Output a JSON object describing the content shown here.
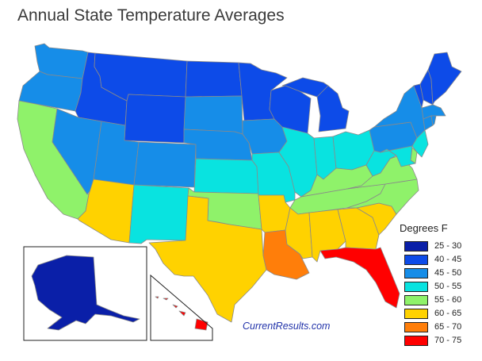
{
  "title": "Annual State Temperature Averages",
  "legend": {
    "title": "Degrees F",
    "items": [
      {
        "label": "25 - 30",
        "color": "#0a1fa8"
      },
      {
        "label": "40 - 45",
        "color": "#0d4be8"
      },
      {
        "label": "45 - 50",
        "color": "#168de8"
      },
      {
        "label": "50 - 55",
        "color": "#09e3e0"
      },
      {
        "label": "55 - 60",
        "color": "#8ff26a"
      },
      {
        "label": "60 - 65",
        "color": "#ffd200"
      },
      {
        "label": "65 - 70",
        "color": "#ff7e0a"
      },
      {
        "label": "70 - 75",
        "color": "#ff0000"
      }
    ]
  },
  "brand": "CurrentResults.com",
  "states": {
    "WA": "45 - 50",
    "OR": "45 - 50",
    "CA": "55 - 60",
    "ID": "40 - 45",
    "NV": "45 - 50",
    "MT": "40 - 45",
    "WY": "40 - 45",
    "UT": "45 - 50",
    "CO": "45 - 50",
    "AZ": "60 - 65",
    "NM": "50 - 55",
    "ND": "40 - 45",
    "SD": "45 - 50",
    "NE": "45 - 50",
    "KS": "50 - 55",
    "OK": "55 - 60",
    "TX": "60 - 65",
    "MN": "40 - 45",
    "IA": "45 - 50",
    "MO": "50 - 55",
    "AR": "60 - 65",
    "LA": "65 - 70",
    "WI": "40 - 45",
    "IL": "50 - 55",
    "MI": "40 - 45",
    "IN": "50 - 55",
    "OH": "50 - 55",
    "KY": "55 - 60",
    "TN": "55 - 60",
    "MS": "60 - 65",
    "AL": "60 - 65",
    "GA": "60 - 65",
    "FL": "70 - 75",
    "SC": "60 - 65",
    "NC": "55 - 60",
    "VA": "55 - 60",
    "WV": "50 - 55",
    "PA": "45 - 50",
    "NY": "45 - 50",
    "VT": "40 - 45",
    "NH": "40 - 45",
    "ME": "40 - 45",
    "MA": "45 - 50",
    "CT": "45 - 50",
    "RI": "45 - 50",
    "NJ": "50 - 55",
    "DE": "55 - 60",
    "MD": "50 - 55",
    "AK": "25 - 30",
    "HI": "70 - 75"
  }
}
